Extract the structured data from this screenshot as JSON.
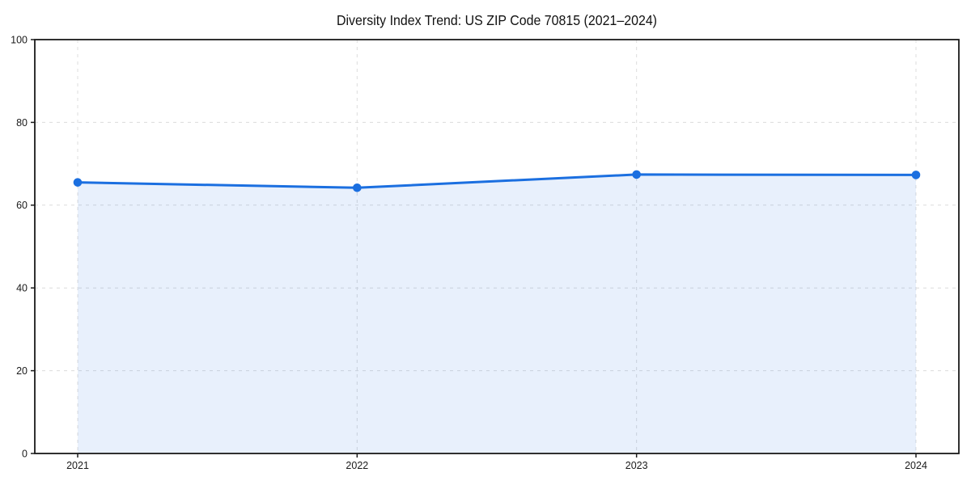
{
  "page": {
    "background": "#ffffff"
  },
  "chart_data": {
    "type": "area",
    "title": "Diversity Index Trend: US ZIP Code 70815 (2021–2024)",
    "categories": [
      "2021",
      "2022",
      "2023",
      "2024"
    ],
    "series": [
      {
        "name": "Diversity Index",
        "values": [
          65.5,
          64.2,
          67.4,
          67.3
        ]
      }
    ],
    "xlabel": "",
    "ylabel": "",
    "ylim": [
      0,
      100
    ],
    "yticks": [
      0,
      20,
      40,
      60,
      80,
      100
    ],
    "grid": true,
    "grid_style": "dashed",
    "legend": "none",
    "marker": "circle",
    "colors": {
      "line": "#1b6fe0",
      "fill": "rgba(27, 111, 224, 0.10)",
      "grid": "#dcdcdc",
      "axis": "#1a1a1a",
      "tick_label": "#1a1a1a",
      "title": "#111111",
      "background": "#ffffff"
    }
  }
}
